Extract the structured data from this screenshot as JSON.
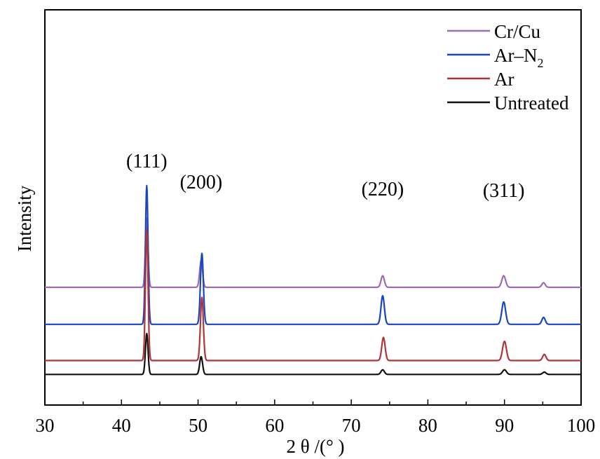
{
  "chart_data": {
    "type": "line",
    "xlabel": "2 θ /(°  )",
    "ylabel": "Intensity",
    "xlim": [
      30,
      100
    ],
    "xticks": [
      "30",
      "40",
      "50",
      "60",
      "70",
      "80",
      "90",
      "100"
    ],
    "xtick_values": [
      30,
      40,
      50,
      60,
      70,
      80,
      90,
      100
    ],
    "y_tick_labels": false,
    "grid": false,
    "legend_position": "top-right",
    "peak_labels": [
      {
        "text": "(111)",
        "x": 43.3
      },
      {
        "text": "(200)",
        "x": 50.4
      },
      {
        "text": "(220)",
        "x": 74.1
      },
      {
        "text": "(311)",
        "x": 89.9
      }
    ],
    "series": [
      {
        "name": "Cr/Cu",
        "color": "#9a6cb4",
        "baseline": 1.0,
        "peaks": [
          [
            43.3,
            0.9,
            0.17
          ],
          [
            50.4,
            0.35,
            0.19
          ],
          [
            74.1,
            0.15,
            0.22
          ],
          [
            89.9,
            0.15,
            0.25
          ],
          [
            95.1,
            0.06,
            0.22
          ]
        ]
      },
      {
        "name": "Ar–N2",
        "color": "#1846c2",
        "baseline": 0.52,
        "peaks": [
          [
            43.3,
            1.8,
            0.17
          ],
          [
            50.5,
            0.92,
            0.19
          ],
          [
            74.1,
            0.37,
            0.22
          ],
          [
            89.9,
            0.29,
            0.25
          ],
          [
            95.1,
            0.09,
            0.22
          ]
        ]
      },
      {
        "name": "Ar",
        "color": "#b1343a",
        "baseline": 0.05,
        "peaks": [
          [
            43.3,
            1.7,
            0.17
          ],
          [
            50.5,
            0.82,
            0.19
          ],
          [
            74.2,
            0.3,
            0.22
          ],
          [
            90.0,
            0.25,
            0.25
          ],
          [
            95.2,
            0.08,
            0.22
          ]
        ]
      },
      {
        "name": "Untreated",
        "color": "#111111",
        "baseline": -0.13,
        "peaks": [
          [
            43.3,
            0.53,
            0.17
          ],
          [
            50.4,
            0.23,
            0.19
          ],
          [
            74.1,
            0.06,
            0.22
          ],
          [
            90.0,
            0.06,
            0.25
          ],
          [
            95.2,
            0.03,
            0.22
          ]
        ]
      }
    ],
    "legend": [
      {
        "main": "Cr/Cu",
        "sub": "",
        "color": "#9a6cb4"
      },
      {
        "main": "Ar–N",
        "sub": "2",
        "color": "#1846c2"
      },
      {
        "main": "Ar",
        "sub": "",
        "color": "#b1343a"
      },
      {
        "main": "Untreated",
        "sub": "",
        "color": "#111111"
      }
    ]
  }
}
